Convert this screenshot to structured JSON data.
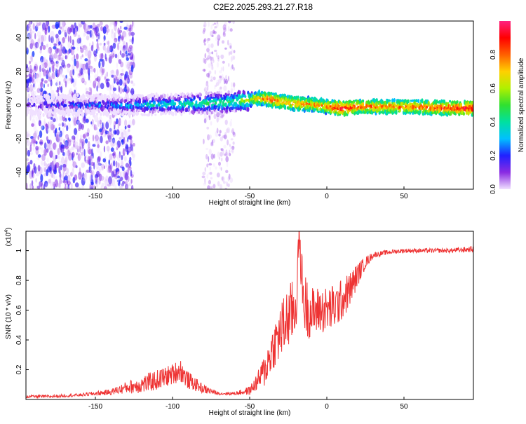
{
  "title": "C2E2.2025.293.21.27.R18",
  "chart_data": [
    {
      "type": "heatmap",
      "name": "spectrogram",
      "xlabel": "Height of straight line (km)",
      "ylabel": "Frequency (Hz)",
      "xlim": [
        -195,
        95
      ],
      "ylim": [
        -50,
        50
      ],
      "xticks": [
        -150,
        -100,
        -50,
        0,
        50
      ],
      "xtick_labels": [
        "-150",
        "-100",
        "-50",
        "0",
        "50"
      ],
      "yticks": [
        -40,
        -20,
        0,
        20,
        40
      ],
      "ytick_labels": [
        "-40",
        "-20",
        "0",
        "20",
        "40"
      ],
      "colorbar": {
        "label": "Normalized spectral amplitude",
        "range": [
          0,
          1
        ],
        "ticks": [
          0.0,
          0.2,
          0.4,
          0.6,
          0.8
        ],
        "tick_labels": [
          "0.0",
          "0.2",
          "0.4",
          "0.6",
          "0.8"
        ],
        "colors": [
          "#f0e0ff",
          "#8a2be2",
          "#2020ff",
          "#00c0ff",
          "#00e0a0",
          "#30e030",
          "#b0f000",
          "#ffd000",
          "#ff6000",
          "#ff0000",
          "#ff2080"
        ]
      },
      "ridge": {
        "x": [
          -195,
          -150,
          -120,
          -100,
          -80,
          -60,
          -50,
          -45,
          -40,
          -35,
          -30,
          -25,
          -20,
          -10,
          0,
          10,
          20,
          30,
          50,
          70,
          95
        ],
        "freq": [
          0,
          0,
          0,
          0.5,
          1,
          2,
          3,
          4,
          4,
          3,
          2,
          1.5,
          1,
          0.5,
          -1,
          -2,
          -1,
          -1,
          -1,
          -1.5,
          -2
        ],
        "amplitude": [
          0.15,
          0.25,
          0.35,
          0.4,
          0.45,
          0.5,
          0.6,
          0.75,
          0.8,
          0.85,
          0.82,
          0.8,
          0.8,
          0.78,
          0.8,
          0.95,
          0.85,
          0.82,
          0.82,
          0.85,
          0.95
        ]
      }
    },
    {
      "type": "line",
      "name": "snr",
      "xlabel": "Height of straight line (km)",
      "ylabel": "SNR (10 * v/v)",
      "y_multiplier": "(x10",
      "y_exponent": "4",
      "y_multiplier_close": ")",
      "xlim": [
        -195,
        95
      ],
      "ylim": [
        0,
        1.13
      ],
      "xticks": [
        -150,
        -100,
        -50,
        0,
        50
      ],
      "xtick_labels": [
        "-150",
        "-100",
        "-50",
        "0",
        "50"
      ],
      "yticks": [
        0.2,
        0.4,
        0.6,
        0.8,
        1.0
      ],
      "ytick_labels": [
        "0.2",
        "0.4",
        "0.6",
        "0.8",
        "1"
      ],
      "color": "#ee3333",
      "series": [
        {
          "name": "SNR",
          "x": [
            -195,
            -180,
            -160,
            -140,
            -130,
            -120,
            -110,
            -100,
            -95,
            -90,
            -80,
            -70,
            -60,
            -50,
            -45,
            -40,
            -35,
            -30,
            -25,
            -20,
            -18,
            -15,
            -10,
            -5,
            0,
            5,
            10,
            15,
            20,
            25,
            30,
            40,
            50,
            60,
            70,
            80,
            95
          ],
          "y": [
            0.02,
            0.02,
            0.03,
            0.05,
            0.08,
            0.1,
            0.13,
            0.17,
            0.2,
            0.13,
            0.07,
            0.04,
            0.04,
            0.06,
            0.12,
            0.2,
            0.35,
            0.45,
            0.55,
            0.62,
            1.1,
            0.65,
            0.58,
            0.6,
            0.6,
            0.62,
            0.67,
            0.74,
            0.84,
            0.92,
            0.97,
            0.99,
            1.0,
            1.0,
            1.0,
            1.0,
            1.01
          ],
          "noise_amp": [
            0.01,
            0.01,
            0.01,
            0.02,
            0.04,
            0.06,
            0.07,
            0.07,
            0.08,
            0.06,
            0.03,
            0.01,
            0.01,
            0.03,
            0.06,
            0.12,
            0.15,
            0.2,
            0.22,
            0.22,
            0.1,
            0.22,
            0.18,
            0.16,
            0.16,
            0.16,
            0.14,
            0.12,
            0.08,
            0.04,
            0.02,
            0.015,
            0.015,
            0.015,
            0.015,
            0.015,
            0.02
          ]
        }
      ]
    }
  ]
}
